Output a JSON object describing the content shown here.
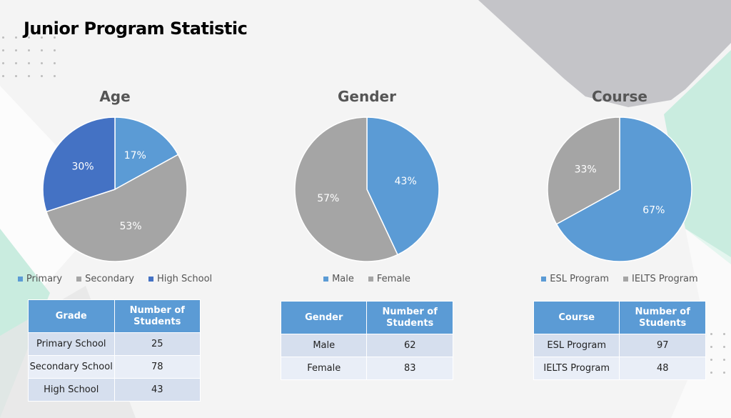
{
  "page": {
    "title": "Junior Program Statistic"
  },
  "colors": {
    "light_blue": "#5b9bd5",
    "gray": "#a5a5a5",
    "dark_blue": "#4472c4",
    "table_header": "#5b9bd5",
    "row_odd": "#d6dfee",
    "row_even": "#e9eef7"
  },
  "chart_data": [
    {
      "type": "pie",
      "title": "Age",
      "categories": [
        "Primary",
        "Secondary",
        "High School"
      ],
      "values": [
        17,
        53,
        30
      ],
      "labels": [
        "17%",
        "53%",
        "30%"
      ],
      "colors": [
        "#5b9bd5",
        "#a5a5a5",
        "#4472c4"
      ],
      "legend_position": "bottom"
    },
    {
      "type": "pie",
      "title": "Gender",
      "categories": [
        "Male",
        "Female"
      ],
      "values": [
        43,
        57
      ],
      "labels": [
        "43%",
        "57%"
      ],
      "colors": [
        "#5b9bd5",
        "#a5a5a5"
      ],
      "legend_position": "bottom"
    },
    {
      "type": "pie",
      "title": "Course",
      "categories": [
        "ESL Program",
        "IELTS Program"
      ],
      "values": [
        67,
        33
      ],
      "labels": [
        "67%",
        "33%"
      ],
      "colors": [
        "#5b9bd5",
        "#a5a5a5"
      ],
      "legend_position": "bottom"
    }
  ],
  "tables": [
    {
      "headers": [
        "Grade",
        "Number of Students"
      ],
      "rows": [
        [
          "Primary School",
          "25"
        ],
        [
          "Secondary School",
          "78"
        ],
        [
          "High School",
          "43"
        ]
      ]
    },
    {
      "headers": [
        "Gender",
        "Number of Students"
      ],
      "rows": [
        [
          "Male",
          "62"
        ],
        [
          "Female",
          "83"
        ]
      ]
    },
    {
      "headers": [
        "Course",
        "Number of Students"
      ],
      "rows": [
        [
          "ESL Program",
          "97"
        ],
        [
          "IELTS Program",
          "48"
        ]
      ]
    }
  ]
}
